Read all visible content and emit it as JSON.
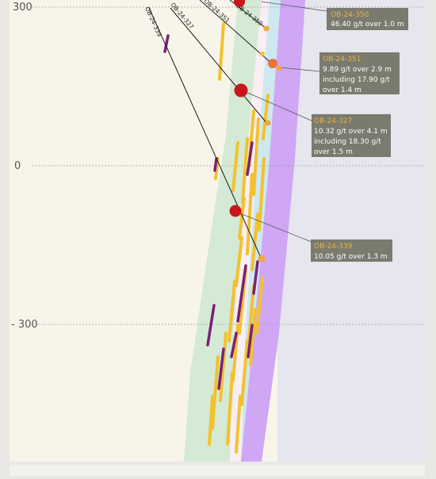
{
  "elevation_labels": [
    "300",
    "0",
    "- 300"
  ],
  "drill_holes": [
    "OB-24-339",
    "OB-24-327",
    "OB-24-351",
    "OB-24-350"
  ],
  "callouts": [
    {
      "hole": "OB-24-350",
      "lines": [
        "46.40 g/t over 1.0 m"
      ]
    },
    {
      "hole": "OB-24-351",
      "lines": [
        "9.89 g/t over 2.9 m",
        "including 17.90 g/t",
        "over 1.4 m"
      ]
    },
    {
      "hole": "OB-24-327",
      "lines": [
        "10.32 g/t over 4.1 m",
        "including 18.30 g/t",
        "over 1.5 m"
      ]
    },
    {
      "hole": "OB-24-339",
      "lines": [
        "10.05 g/t over 1.3 m"
      ]
    }
  ],
  "colors": {
    "background": "#f7f5ea",
    "host_rock": "#d4ead4",
    "ultramafic": "#cfa7f5",
    "vein_gold": "#f2c12e",
    "vein_purple": "#7a2178",
    "callout_box": "#7a7a6e",
    "callout_title": "#e8b24a",
    "intercept_high": "#c8161c",
    "intercept_mid": "#e8743a",
    "intercept_low": "#f2a640"
  }
}
